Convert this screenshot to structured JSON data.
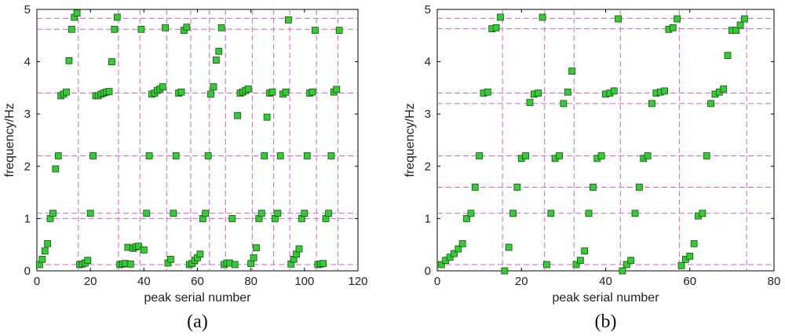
{
  "chart_data": [
    {
      "type": "scatter",
      "caption": "(a)",
      "xlabel": "peak serial number",
      "ylabel": "frequency/Hz",
      "xlim": [
        0,
        120
      ],
      "ylim": [
        0,
        5
      ],
      "xticks": [
        "0",
        "20",
        "40",
        "60",
        "80",
        "100",
        "120"
      ],
      "yticks": [
        "0",
        "1",
        "2",
        "3",
        "4",
        "5"
      ],
      "grid": false,
      "marker_color": "#33cc33",
      "reference_line_color": "#cc66cc",
      "hlines": [
        0.12,
        1.0,
        1.1,
        2.2,
        3.4,
        4.62,
        4.83
      ],
      "vlines": [
        15.5,
        30.5,
        38.5,
        48.5,
        57.5,
        64.5,
        70.5,
        80.5,
        88.5,
        94.5,
        104.5,
        112.5
      ],
      "x": [
        1,
        2,
        3,
        4,
        5,
        6,
        7,
        8,
        9,
        10,
        11,
        12,
        13,
        14,
        15,
        16,
        17,
        18,
        19,
        20,
        21,
        22,
        23,
        24,
        25,
        26,
        27,
        28,
        29,
        30,
        31,
        32,
        33,
        34,
        35,
        36,
        37,
        38,
        39,
        40,
        41,
        42,
        43,
        44,
        45,
        46,
        47,
        48,
        49,
        50,
        51,
        52,
        53,
        54,
        55,
        56,
        57,
        58,
        59,
        60,
        61,
        62,
        63,
        64,
        65,
        66,
        67,
        68,
        69,
        70,
        71,
        72,
        73,
        74,
        75,
        76,
        77,
        78,
        79,
        80,
        81,
        82,
        83,
        84,
        85,
        86,
        87,
        88,
        89,
        90,
        91,
        92,
        93,
        94,
        95,
        96,
        97,
        98,
        99,
        100,
        101,
        102,
        103,
        104,
        105,
        106,
        107,
        108,
        109,
        110,
        111,
        112,
        113
      ],
      "y": [
        0.12,
        0.22,
        0.38,
        0.52,
        1.0,
        1.1,
        1.95,
        2.2,
        3.35,
        3.38,
        3.42,
        4.02,
        4.62,
        4.85,
        4.93,
        0.12,
        0.13,
        0.15,
        0.2,
        1.1,
        2.2,
        3.35,
        3.35,
        3.38,
        3.4,
        3.42,
        3.43,
        4.0,
        4.62,
        4.85,
        0.12,
        0.13,
        0.14,
        0.45,
        0.13,
        0.43,
        0.46,
        0.47,
        4.62,
        0.4,
        1.1,
        2.2,
        3.38,
        3.4,
        3.45,
        3.48,
        3.52,
        4.65,
        0.15,
        0.22,
        1.1,
        2.2,
        3.4,
        3.42,
        4.6,
        4.66,
        0.12,
        0.14,
        0.2,
        0.25,
        0.32,
        1.0,
        1.1,
        2.2,
        3.38,
        3.52,
        4.03,
        4.2,
        4.65,
        0.12,
        0.15,
        0.15,
        1.0,
        0.12,
        2.97,
        3.4,
        3.42,
        3.45,
        3.48,
        0.14,
        0.25,
        0.44,
        1.0,
        1.1,
        2.2,
        2.94,
        3.4,
        3.42,
        1.0,
        1.1,
        2.2,
        3.38,
        3.42,
        4.8,
        0.13,
        0.22,
        0.32,
        0.42,
        1.0,
        1.1,
        2.2,
        3.4,
        3.42,
        4.6,
        0.12,
        0.13,
        0.14,
        1.0,
        1.1,
        2.2,
        3.42,
        3.47,
        4.6
      ]
    },
    {
      "type": "scatter",
      "caption": "(b)",
      "xlabel": "peak serial number",
      "ylabel": "frequency/Hz",
      "xlim": [
        0,
        80
      ],
      "ylim": [
        0,
        5
      ],
      "xticks": [
        "0",
        "20",
        "40",
        "60",
        "80"
      ],
      "yticks": [
        "0",
        "1",
        "2",
        "3",
        "4",
        "5"
      ],
      "grid": false,
      "marker_color": "#33cc33",
      "reference_line_color": "#cc66cc",
      "hlines": [
        0.12,
        1.1,
        1.6,
        2.2,
        3.2,
        3.4,
        4.63,
        4.83
      ],
      "vlines": [
        15.5,
        25.5,
        32.5,
        43.5,
        57.5,
        73.5
      ],
      "x": [
        1,
        2,
        3,
        4,
        5,
        6,
        7,
        8,
        9,
        10,
        11,
        12,
        13,
        14,
        15,
        16,
        17,
        18,
        19,
        20,
        21,
        22,
        23,
        24,
        25,
        26,
        27,
        28,
        29,
        30,
        31,
        32,
        33,
        34,
        35,
        36,
        37,
        38,
        39,
        40,
        41,
        42,
        43,
        44,
        45,
        46,
        47,
        48,
        49,
        50,
        51,
        52,
        53,
        54,
        55,
        56,
        57,
        58,
        59,
        60,
        61,
        62,
        63,
        64,
        65,
        66,
        67,
        68,
        69,
        70,
        71,
        72,
        73
      ],
      "y": [
        0.12,
        0.2,
        0.26,
        0.33,
        0.42,
        0.52,
        1.0,
        1.1,
        1.6,
        2.2,
        3.4,
        3.42,
        4.63,
        4.65,
        4.85,
        0.0,
        0.45,
        1.1,
        1.6,
        2.15,
        2.2,
        3.22,
        3.38,
        3.4,
        4.85,
        0.12,
        1.1,
        2.15,
        2.2,
        3.2,
        3.42,
        3.82,
        0.12,
        0.2,
        0.38,
        1.1,
        1.6,
        2.15,
        2.2,
        3.38,
        3.4,
        3.44,
        4.82,
        0.0,
        0.12,
        0.2,
        1.1,
        1.6,
        2.15,
        2.2,
        3.2,
        3.4,
        3.42,
        3.44,
        4.62,
        4.65,
        4.82,
        0.1,
        0.22,
        0.28,
        0.52,
        1.05,
        1.1,
        2.2,
        3.2,
        3.38,
        3.42,
        3.48,
        4.12,
        4.6,
        4.6,
        4.7,
        4.82
      ]
    }
  ]
}
